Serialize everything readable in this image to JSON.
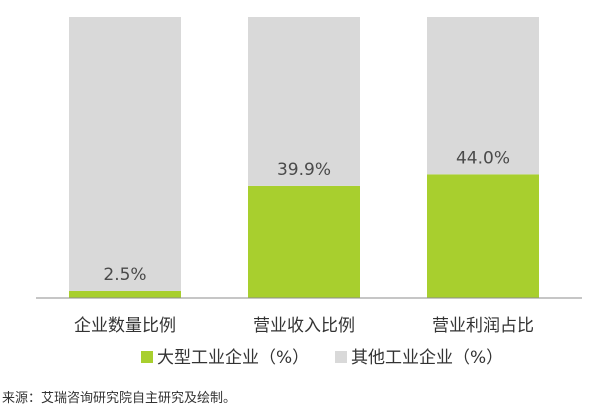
{
  "chart_data": {
    "type": "bar",
    "stacked": "percent",
    "categories": [
      "企业数量比例",
      "营业收入比例",
      "营业利润占比"
    ],
    "ylim": [
      0,
      100
    ],
    "series": [
      {
        "name": "大型工业企业（%）",
        "values": [
          2.5,
          39.9,
          44.0
        ],
        "color": "#a8cf2e"
      },
      {
        "name": "其他工业企业（%）",
        "values": [
          97.5,
          60.1,
          56.0
        ],
        "color": "#d9d9d9"
      }
    ],
    "data_labels": [
      "2.5%",
      "39.9%",
      "44.0%"
    ],
    "legend_position": "bottom",
    "grid": false
  },
  "footer": {
    "source": "来源：艾瑞咨询研究院自主研究及绘制。"
  }
}
